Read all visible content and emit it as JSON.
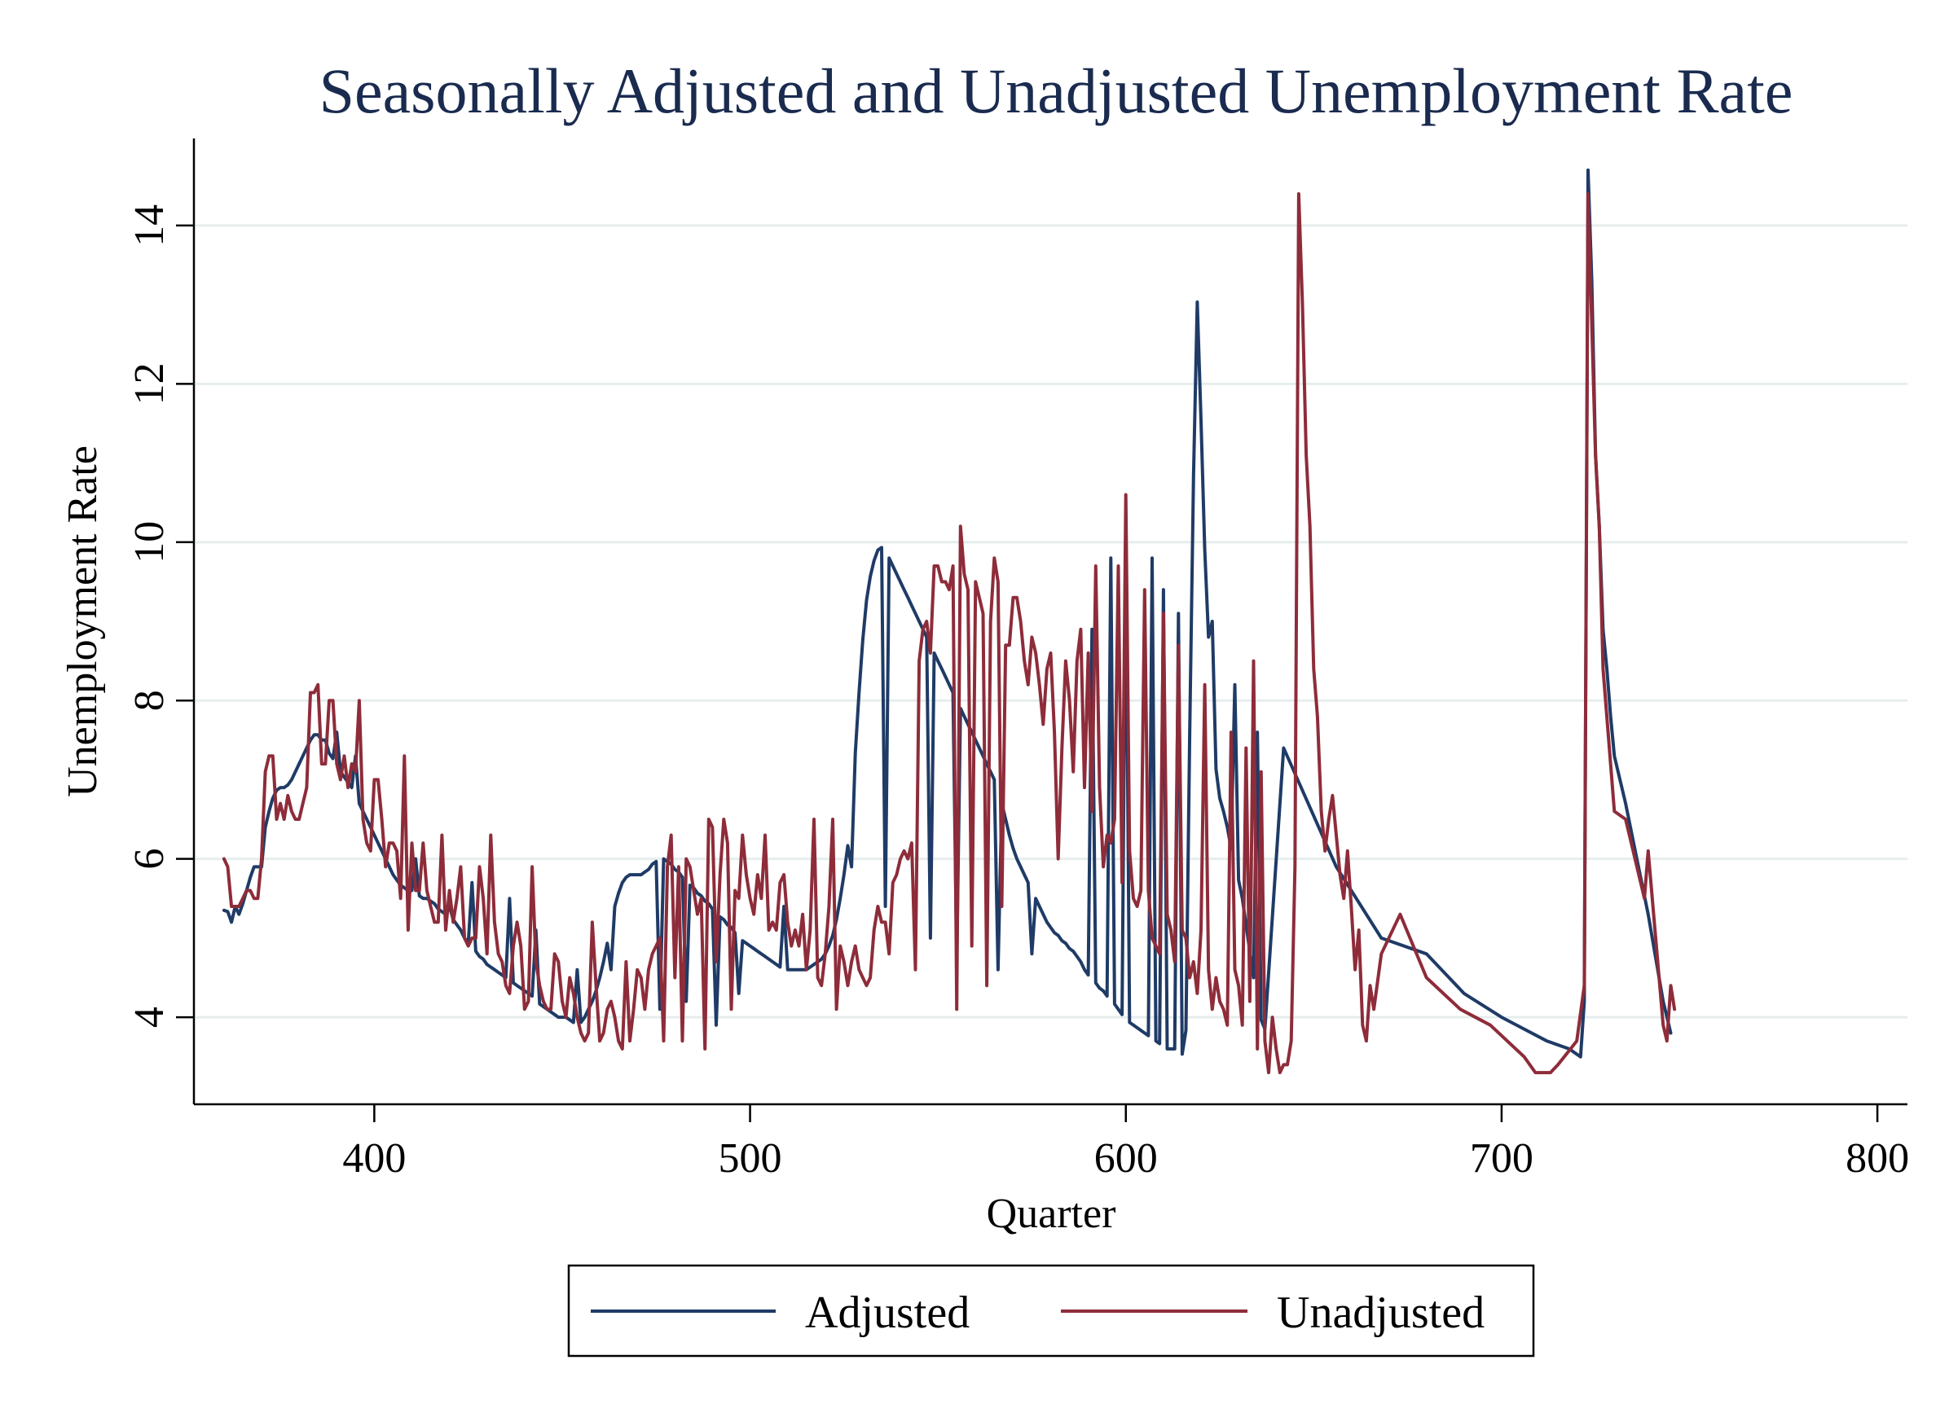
{
  "chart_data": {
    "type": "line",
    "title": "Seasonally Adjusted and Unadjusted Unemployment Rate",
    "xlabel": "Quarter",
    "ylabel": "Unemployment Rate",
    "xlim": [
      352,
      808
    ],
    "ylim": [
      2.9,
      15.1
    ],
    "xticks": [
      400,
      500,
      600,
      700,
      800
    ],
    "yticks": [
      4,
      6,
      8,
      10,
      12,
      14
    ],
    "grid": "horizontal",
    "legend_position": "bottom",
    "colors": {
      "adjusted": "#1f3b66",
      "unadjusted": "#8e2c3a",
      "grid": "#e6eded"
    },
    "x_start": 360,
    "series": [
      {
        "name": "Adjusted",
        "key": "adjusted",
        "values": [
          5.4,
          5.3,
          5.3,
          5.2,
          5.3,
          5.4,
          5.6,
          5.8,
          5.9,
          6.0,
          6.2,
          6.4,
          6.6,
          6.8,
          6.9,
          6.9,
          6.9,
          6.9,
          7.0,
          7.1,
          7.2,
          7.3,
          7.4,
          7.5,
          7.6,
          7.6,
          7.5,
          7.4,
          7.3,
          7.3,
          7.2,
          7.1,
          7.0,
          7.0,
          6.9,
          6.8,
          6.7,
          6.6,
          6.5,
          6.4,
          6.3,
          6.2,
          6.1,
          6.0,
          5.9,
          5.8,
          5.7,
          5.7,
          5.6,
          5.6,
          5.6,
          5.6,
          5.5,
          5.5,
          5.5,
          5.5,
          5.4,
          5.4,
          5.3,
          5.3,
          5.3,
          5.2,
          5.2,
          5.1,
          5.0,
          4.9,
          4.9,
          4.8,
          4.8,
          4.7,
          4.7,
          4.6,
          4.6,
          4.6,
          4.5,
          4.5,
          4.5,
          4.4,
          4.4,
          4.4,
          4.3,
          4.3,
          4.3,
          4.2,
          4.2,
          4.1,
          4.1,
          4.1,
          4.0,
          4.0,
          4.0,
          4.0,
          4.0,
          3.9,
          3.9,
          3.9,
          4.0,
          4.1,
          4.2,
          4.3,
          4.5,
          4.7,
          4.9,
          5.2,
          5.4,
          5.6,
          5.7,
          5.8,
          5.8,
          5.8,
          5.8,
          5.8,
          5.8,
          5.9,
          5.9,
          6.0,
          6.0,
          6.0,
          6.0,
          5.9,
          5.9,
          5.8,
          5.8,
          5.7,
          5.7,
          5.6,
          5.6,
          5.5,
          5.5,
          5.4,
          5.4,
          5.3,
          5.3,
          5.2,
          5.2,
          5.1,
          5.1,
          5.0,
          5.0,
          4.9,
          4.9,
          4.9,
          4.8,
          4.8,
          4.8,
          4.7,
          4.7,
          4.7,
          4.6,
          4.6,
          4.6,
          4.6,
          4.6,
          4.6,
          4.6,
          4.6,
          4.6,
          4.7,
          4.7,
          4.7,
          4.8,
          4.9,
          5.0,
          5.2,
          5.5,
          5.8,
          6.1,
          6.6,
          7.3,
          8.1,
          8.9,
          9.3,
          9.6,
          9.8,
          9.9,
          10.0,
          9.9,
          9.8,
          9.7,
          9.6,
          9.5,
          9.4,
          9.3,
          9.2,
          9.1,
          9.0,
          8.9,
          8.8,
          8.7,
          8.6,
          8.5,
          8.4,
          8.3,
          8.2,
          8.1,
          8.0,
          7.9,
          7.8,
          7.7,
          7.6,
          7.5,
          7.4,
          7.3,
          7.2,
          7.1,
          7.0,
          6.9,
          6.7,
          6.5,
          6.3,
          6.1,
          6.0,
          5.9,
          5.8,
          5.7,
          5.6,
          5.5,
          5.4,
          5.3,
          5.2,
          5.1,
          5.1,
          5.0,
          5.0,
          4.9,
          4.9,
          4.8,
          4.8,
          4.7,
          4.6,
          4.5,
          4.5,
          4.4,
          4.4,
          4.3,
          4.3,
          4.2,
          4.2,
          4.1,
          4.0,
          4.0,
          3.9,
          3.9,
          3.9,
          3.8,
          3.8,
          3.8,
          3.7,
          3.7,
          3.7,
          3.6,
          3.6,
          3.6,
          3.6,
          3.6,
          3.5,
          3.5,
          4.5,
          14.7,
          13.3,
          11.1,
          10.2,
          8.4,
          7.8,
          6.9,
          6.7,
          6.7,
          6.4,
          6.1,
          5.9,
          5.8,
          5.5,
          5.2,
          4.8,
          4.5,
          4.2,
          3.9,
          3.8
        ],
        "markers": [
          [
            362,
            5.2
          ],
          [
            363,
            5.4
          ],
          [
            364,
            5.3
          ],
          [
            369,
            5.9
          ],
          [
            370,
            5.9
          ],
          [
            380,
            7.2
          ],
          [
            382,
            7.4
          ],
          [
            387,
            7.5
          ],
          [
            390,
            7.6
          ],
          [
            395,
            7.3
          ],
          [
            411,
            6.0
          ],
          [
            420,
            5.4
          ],
          [
            426,
            5.7
          ],
          [
            436,
            5.5
          ],
          [
            443,
            5.1
          ],
          [
            454,
            4.6
          ],
          [
            463,
            4.6
          ],
          [
            476,
            4.1
          ],
          [
            483,
            4.2
          ],
          [
            491,
            3.9
          ],
          [
            497,
            4.3
          ],
          [
            509,
            5.4
          ],
          [
            527,
            5.9
          ],
          [
            536,
            5.4
          ],
          [
            548,
            5.0
          ],
          [
            555,
            4.7
          ],
          [
            566,
            4.6
          ],
          [
            575,
            4.8
          ],
          [
            591,
            8.9
          ],
          [
            596,
            9.8
          ],
          [
            600,
            10.0
          ],
          [
            607,
            9.8
          ],
          [
            610,
            9.4
          ],
          [
            614,
            9.1
          ],
          [
            623,
            9.0
          ],
          [
            629,
            8.2
          ],
          [
            635,
            7.6
          ],
          [
            642,
            7.4
          ],
          [
            656,
            5.9
          ],
          [
            668,
            5.0
          ],
          [
            680,
            4.8
          ],
          [
            690,
            4.3
          ],
          [
            700,
            4.0
          ],
          [
            712,
            3.7
          ],
          [
            718,
            3.6
          ],
          [
            721,
            3.5
          ],
          [
            722,
            4.2
          ],
          [
            723,
            14.7
          ],
          [
            724,
            13.3
          ],
          [
            725,
            11.1
          ],
          [
            726,
            10.2
          ],
          [
            727,
            8.9
          ],
          [
            728,
            8.4
          ],
          [
            729,
            7.8
          ],
          [
            730,
            7.3
          ],
          [
            733,
            6.7
          ],
          [
            736,
            6.0
          ],
          [
            739,
            5.3
          ],
          [
            743,
            4.2
          ],
          [
            745,
            3.8
          ]
        ]
      },
      {
        "name": "Unadjusted",
        "key": "unadjusted",
        "values": [
          6.0,
          5.9,
          5.4,
          5.1,
          5.4,
          5.5,
          5.6,
          5.6,
          5.5,
          5.9,
          6.0,
          7.1,
          7.3,
          7.2,
          6.5,
          6.7,
          7.0,
          6.8,
          6.6,
          6.5,
          6.5,
          6.7,
          6.9,
          8.1,
          8.2,
          7.8,
          7.2,
          7.3,
          8.0,
          7.7,
          7.2,
          7.0,
          7.3,
          6.9,
          7.2,
          7.1,
          6.8,
          6.5,
          6.2,
          6.1,
          7.3,
          7.0,
          6.5,
          5.9,
          6.2,
          6.2,
          5.9,
          5.5,
          5.3,
          5.1,
          6.2,
          5.6,
          5.6,
          5.9,
          5.6,
          5.4,
          5.2,
          5.2,
          6.3,
          5.8,
          5.6,
          5.2,
          5.5,
          5.1,
          5.0,
          4.9,
          5.0,
          5.0,
          5.9,
          5.5,
          4.8,
          4.7,
          5.2,
          4.8,
          4.7,
          4.4,
          4.3,
          4.5,
          5.2,
          4.9,
          4.1,
          4.2,
          4.7,
          4.7,
          4.4,
          4.2,
          4.1,
          4.1,
          4.8,
          4.7,
          4.2,
          4.0,
          4.5,
          4.1,
          4.0,
          3.8,
          3.7,
          3.8,
          4.5,
          4.4,
          3.7,
          3.8,
          4.1,
          4.2,
          4.0,
          3.7,
          3.6,
          3.7,
          3.7,
          4.7,
          4.6,
          4.5,
          4.1,
          4.6,
          4.8,
          4.9,
          5.0,
          5.6,
          5.9,
          6.3,
          6.0,
          5.9,
          5.5,
          6.0,
          5.9,
          5.6,
          5.3,
          5.5,
          5.8,
          6.5,
          6.4,
          6.1,
          5.8,
          6.5,
          6.2,
          5.8,
          5.6,
          5.5,
          6.3,
          5.8,
          5.5,
          5.3,
          5.8,
          5.5,
          5.3,
          5.1,
          5.2,
          5.1,
          5.7,
          5.8,
          5.2,
          4.9,
          5.1,
          4.9,
          4.7,
          4.6,
          5.1,
          5.1,
          4.5,
          4.4,
          4.8,
          4.6,
          4.4,
          4.1,
          4.9,
          4.7,
          4.4,
          4.7,
          4.9,
          4.6,
          4.5,
          4.4,
          4.5,
          5.0,
          5.4,
          5.2,
          5.2,
          4.8,
          5.4,
          5.8,
          6.0,
          6.1,
          6.0,
          6.2,
          6.9,
          8.5,
          8.9,
          9.0,
          8.6,
          9.7,
          9.7,
          9.5,
          9.5,
          9.4,
          9.7,
          10.6,
          10.2,
          9.6,
          9.4,
          9.7,
          9.5,
          9.3,
          9.1,
          9.3,
          9.0,
          9.8,
          9.5,
          9.2,
          8.7,
          8.7,
          9.3,
          9.3,
          9.0,
          8.5,
          8.2,
          8.8,
          8.6,
          8.2,
          7.7,
          8.4,
          8.6,
          7.6,
          7.5,
          7.4,
          8.5,
          8.0,
          7.1,
          7.8,
          7.6,
          6.9,
          6.9,
          6.6,
          7.0,
          6.9,
          5.9,
          6.3,
          6.2,
          6.5,
          5.9,
          5.7,
          5.6,
          6.1,
          5.5,
          5.4,
          5.6,
          5.1,
          5.6,
          5.0,
          4.9,
          4.8,
          4.8,
          5.3,
          5.1,
          4.7,
          4.5,
          5.1,
          5.0,
          4.5,
          4.7,
          4.3,
          5.1,
          4.9,
          4.6,
          4.1,
          4.5,
          4.2,
          4.1,
          3.9,
          3.9,
          4.6,
          4.4,
          3.9,
          3.7,
          4.2,
          4.0,
          3.6,
          3.5,
          3.7,
          3.3,
          4.0,
          3.6,
          3.3,
          3.4,
          3.4,
          3.7,
          4.4,
          14.4,
          13.0,
          11.1,
          10.2,
          8.4,
          7.8,
          6.6,
          6.4,
          6.5,
          6.8,
          6.3,
          5.8,
          5.5,
          6.1,
          5.4,
          4.6,
          4.3,
          3.9,
          3.7,
          4.4,
          4.1
        ],
        "markers": [
          [
            361,
            5.9
          ],
          [
            363,
            5.4
          ],
          [
            369,
            5.5
          ],
          [
            373,
            7.3
          ],
          [
            376,
            6.5
          ],
          [
            384,
            8.1
          ],
          [
            385,
            8.2
          ],
          [
            387,
            7.2
          ],
          [
            389,
            8.0
          ],
          [
            396,
            8.0
          ],
          [
            400,
            7.0
          ],
          [
            406,
            6.1
          ],
          [
            408,
            7.3
          ],
          [
            413,
            6.2
          ],
          [
            419,
            5.1
          ],
          [
            423,
            5.9
          ],
          [
            431,
            6.3
          ],
          [
            437,
            4.9
          ],
          [
            442,
            5.9
          ],
          [
            453,
            4.3
          ],
          [
            458,
            5.2
          ],
          [
            467,
            4.7
          ],
          [
            469,
            4.1
          ],
          [
            477,
            3.7
          ],
          [
            480,
            4.5
          ],
          [
            482,
            3.7
          ],
          [
            488,
            3.6
          ],
          [
            491,
            4.7
          ],
          [
            495,
            4.1
          ],
          [
            504,
            6.3
          ],
          [
            514,
            5.3
          ],
          [
            517,
            6.5
          ],
          [
            521,
            5.4
          ],
          [
            522,
            6.5
          ],
          [
            533,
            5.1
          ],
          [
            538,
            5.7
          ],
          [
            544,
            4.6
          ],
          [
            555,
            4.1
          ],
          [
            559,
            4.9
          ],
          [
            563,
            4.4
          ],
          [
            567,
            5.4
          ],
          [
            582,
            6.0
          ],
          [
            587,
            8.5
          ],
          [
            588,
            8.9
          ],
          [
            590,
            8.6
          ],
          [
            592,
            9.7
          ],
          [
            598,
            9.7
          ],
          [
            600,
            10.6
          ],
          [
            605,
            9.4
          ],
          [
            610,
            9.1
          ],
          [
            614,
            8.7
          ],
          [
            621,
            8.2
          ],
          [
            628,
            7.6
          ],
          [
            632,
            7.4
          ],
          [
            634,
            8.5
          ],
          [
            636,
            7.1
          ],
          [
            645,
            5.9
          ],
          [
            653,
            6.1
          ],
          [
            662,
            5.1
          ],
          [
            668,
            4.8
          ],
          [
            673,
            5.3
          ],
          [
            680,
            4.5
          ],
          [
            689,
            4.1
          ],
          [
            697,
            3.9
          ],
          [
            706,
            3.5
          ],
          [
            709,
            3.3
          ],
          [
            713,
            3.3
          ],
          [
            715,
            3.4
          ],
          [
            720,
            3.7
          ],
          [
            722,
            4.4
          ],
          [
            723,
            14.4
          ],
          [
            725,
            11.1
          ],
          [
            726,
            10.2
          ],
          [
            727,
            8.4
          ],
          [
            730,
            6.6
          ],
          [
            733,
            6.5
          ],
          [
            738,
            5.5
          ],
          [
            739,
            6.1
          ],
          [
            743,
            3.9
          ],
          [
            744,
            3.7
          ],
          [
            745,
            4.4
          ],
          [
            746,
            4.1
          ]
        ]
      }
    ]
  }
}
